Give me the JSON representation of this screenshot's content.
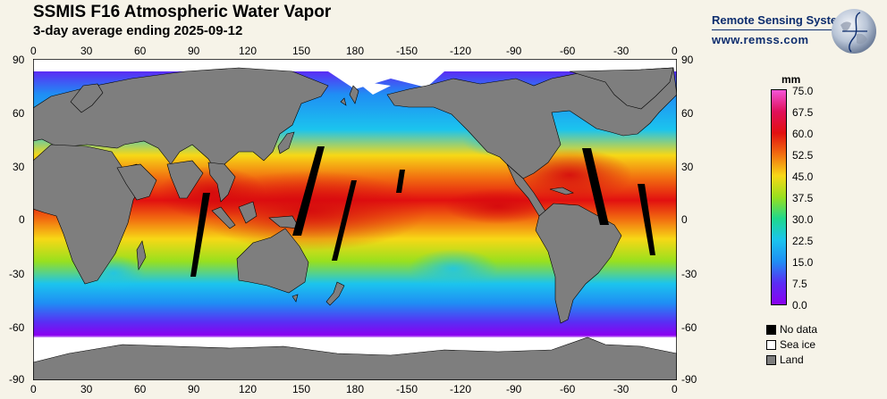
{
  "title": "SSMIS F16 Atmospheric Water Vapor",
  "subtitle": "3-day average ending 2025-09-12",
  "brand": {
    "name": "Remote Sensing Systems",
    "url": "www.remss.com"
  },
  "axes": {
    "lon_ticks": [
      "0",
      "30",
      "60",
      "90",
      "120",
      "150",
      "180",
      "-150",
      "-120",
      "-90",
      "-60",
      "-30",
      "0"
    ],
    "lat_ticks": [
      "90",
      "60",
      "30",
      "0",
      "-30",
      "-60",
      "-90"
    ]
  },
  "colorbar": {
    "units": "mm",
    "labels": [
      "75.0",
      "67.5",
      "60.0",
      "52.5",
      "45.0",
      "37.5",
      "30.0",
      "22.5",
      "15.0",
      "7.5",
      "0.0"
    ],
    "colors": [
      "#f455d8",
      "#e0105a",
      "#e21010",
      "#f26f10",
      "#f7d816",
      "#98e01e",
      "#1fd88d",
      "#1bc4ee",
      "#1f8ef4",
      "#5a2df4",
      "#8a00f0"
    ]
  },
  "legend": [
    {
      "label": "No data",
      "color": "#000000"
    },
    {
      "label": "Sea ice",
      "color": "#ffffff"
    },
    {
      "label": "Land",
      "color": "#7e7e7e"
    }
  ]
}
